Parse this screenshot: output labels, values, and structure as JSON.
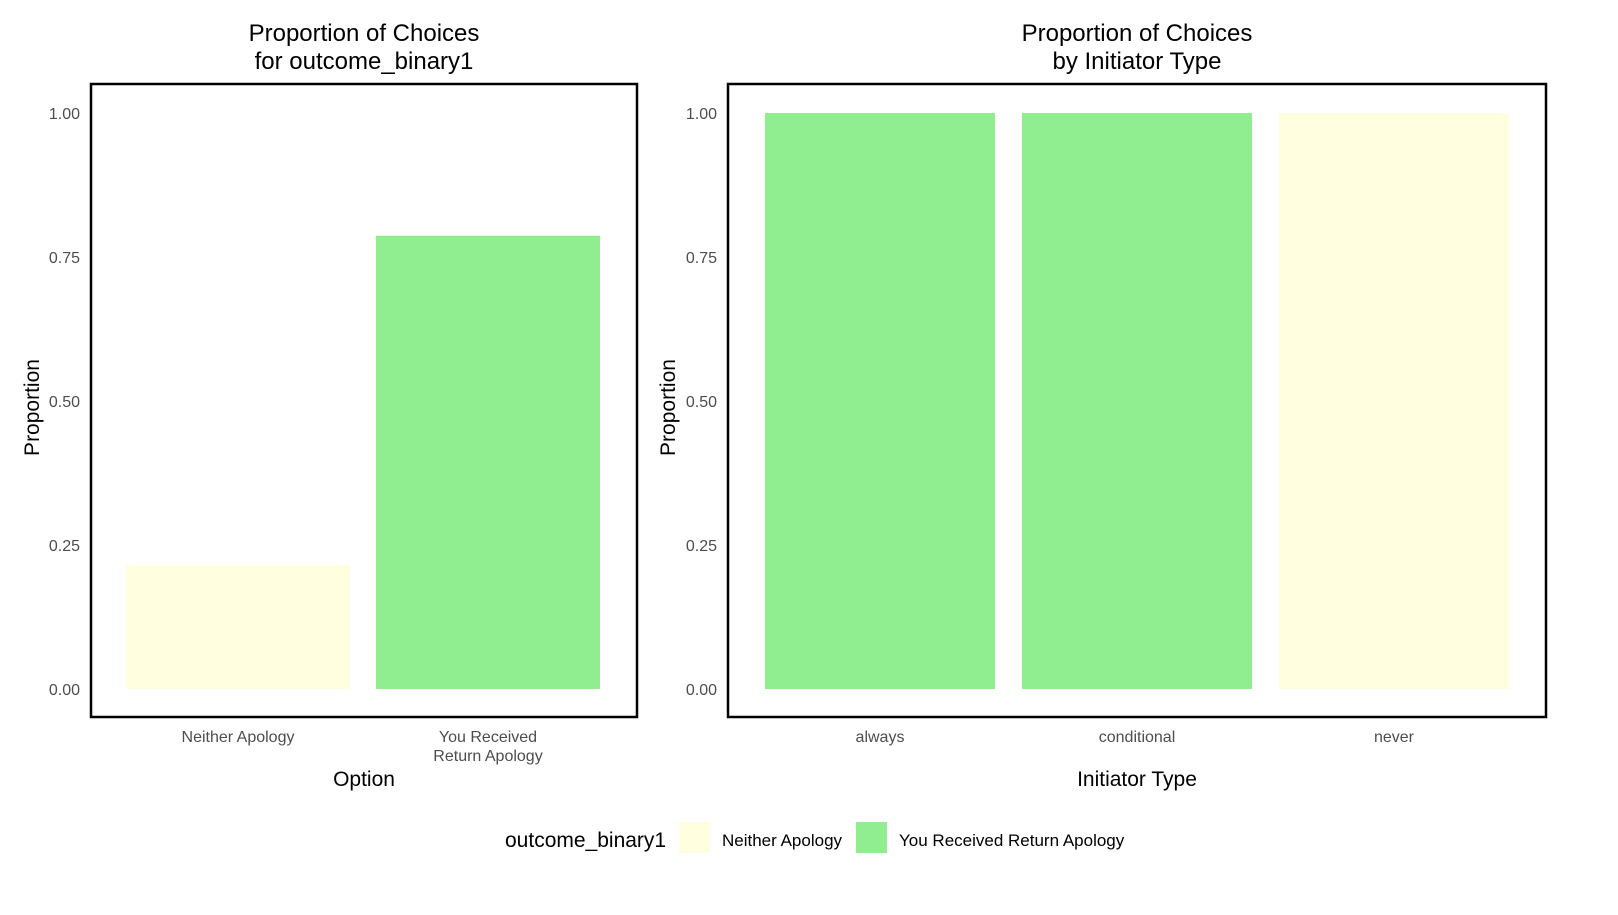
{
  "chart_data": [
    {
      "type": "bar",
      "title": "Proportion of Choices\nfor outcome_binary1",
      "xlabel": "Option",
      "ylabel": "Proportion",
      "ylim": [
        0,
        1
      ],
      "yticks": [
        "0.00",
        "0.25",
        "0.50",
        "0.75",
        "1.00"
      ],
      "categories": [
        "Neither Apology",
        "You Received\nReturn Apology"
      ],
      "values": [
        0.215,
        0.787
      ],
      "colors": [
        "#FFFFE0",
        "#90EE90"
      ],
      "grid": false
    },
    {
      "type": "bar",
      "title": "Proportion of Choices\nby Initiator Type",
      "xlabel": "Initiator Type",
      "ylabel": "Proportion",
      "ylim": [
        0,
        1
      ],
      "yticks": [
        "0.00",
        "0.25",
        "0.50",
        "0.75",
        "1.00"
      ],
      "categories": [
        "always",
        "conditional",
        "never"
      ],
      "values": [
        1.0,
        1.0,
        1.0
      ],
      "fill_outcome": [
        "You Received Return Apology",
        "You Received Return Apology",
        "Neither Apology"
      ],
      "colors": [
        "#90EE90",
        "#90EE90",
        "#FFFFE0"
      ],
      "grid": false
    }
  ],
  "legend": {
    "title": "outcome_binary1",
    "position": "bottom",
    "entries": [
      {
        "label": "Neither Apology",
        "color": "#FFFFE0"
      },
      {
        "label": "You Received Return Apology",
        "color": "#90EE90"
      }
    ]
  }
}
